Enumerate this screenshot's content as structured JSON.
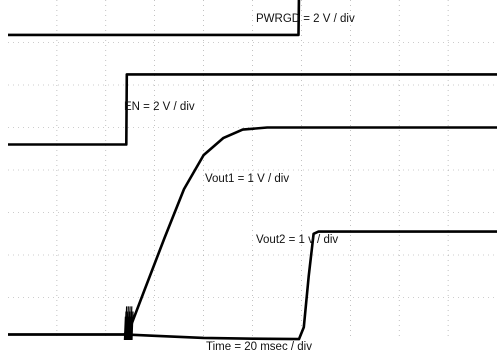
{
  "chart_data": {
    "type": "line",
    "title": "",
    "xlabel": "Time = 20 msec / div",
    "x_divisions": 10,
    "y_divisions": 8,
    "grid": true,
    "x_unit": "div",
    "y_unit": "div",
    "series": [
      {
        "name": "PWRGD = 2 V / div",
        "color": "#000000",
        "points": [
          [
            0,
            7.18
          ],
          [
            5.94,
            7.18
          ],
          [
            5.94,
            7.18
          ],
          [
            5.95,
            8.18
          ],
          [
            10,
            8.18
          ]
        ]
      },
      {
        "name": "EN = 2 V / div",
        "color": "#000000",
        "points": [
          [
            0,
            4.6
          ],
          [
            2.42,
            4.6
          ],
          [
            2.43,
            6.25
          ],
          [
            10,
            6.25
          ]
        ]
      },
      {
        "name": "Vout1 = 1 V / div",
        "color": "#000000",
        "points": [
          [
            0,
            0.13
          ],
          [
            2.38,
            0.13
          ],
          [
            2.5,
            0.3
          ],
          [
            2.8,
            1.2
          ],
          [
            3.2,
            2.4
          ],
          [
            3.6,
            3.55
          ],
          [
            4.0,
            4.35
          ],
          [
            4.4,
            4.75
          ],
          [
            4.8,
            4.95
          ],
          [
            5.3,
            5.0
          ],
          [
            6.0,
            5.0
          ],
          [
            10,
            5.0
          ]
        ]
      },
      {
        "name": "Vout2 = 1 v / div",
        "color": "#000000",
        "points": [
          [
            0,
            0.13
          ],
          [
            2.4,
            0.13
          ],
          [
            3.0,
            0.1
          ],
          [
            4.0,
            0.05
          ],
          [
            5.0,
            0.03
          ],
          [
            5.95,
            0.02
          ],
          [
            6.05,
            0.3
          ],
          [
            6.15,
            1.5
          ],
          [
            6.25,
            2.5
          ],
          [
            6.35,
            2.55
          ],
          [
            10,
            2.55
          ]
        ]
      }
    ]
  }
}
